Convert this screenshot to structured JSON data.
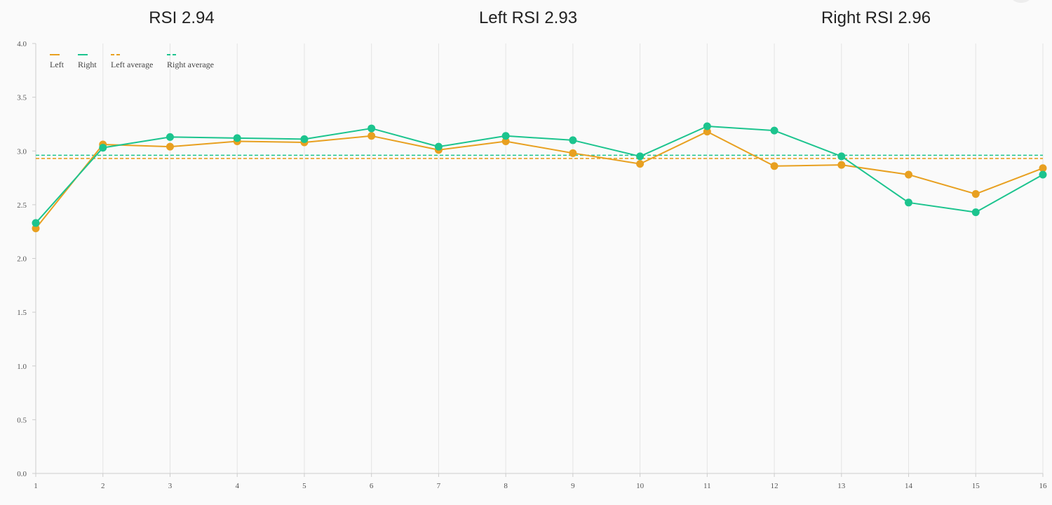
{
  "header": {
    "rsi": "RSI 2.94",
    "left_rsi": "Left RSI 2.93",
    "right_rsi": "Right RSI 2.96"
  },
  "colors": {
    "left": "#e8a020",
    "right": "#1cc48e",
    "grid": "#e4e4e4",
    "axis": "#cccccc"
  },
  "chart_data": {
    "type": "line",
    "title": "",
    "xlabel": "",
    "ylabel": "",
    "x": [
      1,
      2,
      3,
      4,
      5,
      6,
      7,
      8,
      9,
      10,
      11,
      12,
      13,
      14,
      15,
      16
    ],
    "ylim": [
      0,
      4
    ],
    "yticks": [
      "0.0",
      "0.5",
      "1.0",
      "1.5",
      "2.0",
      "2.5",
      "3.0",
      "3.5",
      "4.0"
    ],
    "grid": "vertical",
    "legend_position": "top-left",
    "legend": [
      "Left",
      "Right",
      "Left average",
      "Right average"
    ],
    "series": [
      {
        "name": "Left",
        "color": "#e8a020",
        "values": [
          2.28,
          3.06,
          3.04,
          3.09,
          3.08,
          3.14,
          3.01,
          3.09,
          2.98,
          2.88,
          3.18,
          2.86,
          2.87,
          2.78,
          2.6,
          2.84
        ]
      },
      {
        "name": "Right",
        "color": "#1cc48e",
        "values": [
          2.33,
          3.03,
          3.13,
          3.12,
          3.11,
          3.21,
          3.04,
          3.14,
          3.1,
          2.95,
          3.23,
          3.19,
          2.95,
          2.52,
          2.43,
          2.78
        ]
      }
    ],
    "averages": [
      {
        "name": "Left average",
        "color": "#e8a020",
        "value": 2.93
      },
      {
        "name": "Right average",
        "color": "#1cc48e",
        "value": 2.96
      }
    ]
  }
}
